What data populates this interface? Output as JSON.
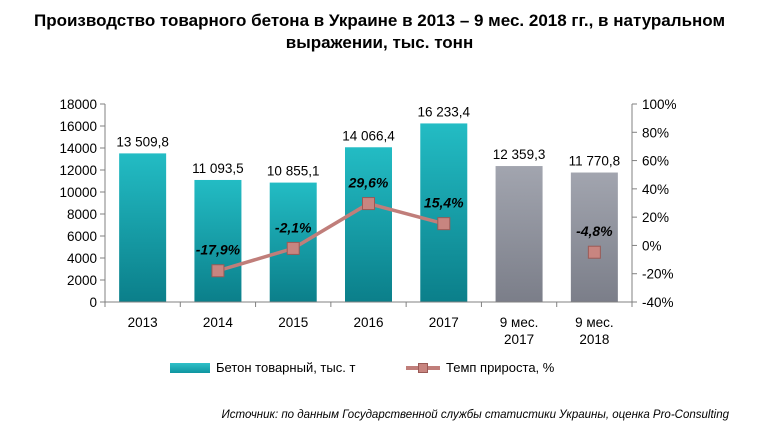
{
  "chart_data": {
    "type": "bar",
    "title": "Производство товарного бетона в Украине в 2013 – 9 мес. 2018 гг., в натуральном выражении, тыс. тонн",
    "categories": [
      "2013",
      "2014",
      "2015",
      "2016",
      "2017",
      "9 мес.\n2017",
      "9 мес.\n2018"
    ],
    "series": [
      {
        "name": "Бетон товарный, тыс. т",
        "values": [
          13509.8,
          11093.5,
          10855.1,
          14066.4,
          16233.4,
          12359.3,
          11770.8
        ],
        "labels": [
          "13 509,8",
          "11 093,5",
          "10 855,1",
          "14 066,4",
          "16 233,4",
          "12 359,3",
          "11 770,8"
        ],
        "colors": [
          "#14a7b0",
          "#14a7b0",
          "#14a7b0",
          "#14a7b0",
          "#14a7b0",
          "#8e919c",
          "#8e919c"
        ]
      },
      {
        "name": "Темп прироста, %",
        "axis": "right",
        "values": [
          null,
          -17.9,
          -2.1,
          29.6,
          15.4,
          null,
          -4.8
        ],
        "labels": [
          "",
          "-17,9%",
          "-2,1%",
          "29,6%",
          "15,4%",
          "",
          "-4,8%"
        ],
        "color": "#c07e7a"
      }
    ],
    "y_left": {
      "ylim": [
        0,
        18000
      ],
      "ticks": [
        "0",
        "2000",
        "4000",
        "6000",
        "8000",
        "10000",
        "12000",
        "14000",
        "16000",
        "18000"
      ]
    },
    "y_right": {
      "ylim": [
        -40,
        100
      ],
      "ticks": [
        "-40%",
        "-20%",
        "0%",
        "20%",
        "40%",
        "60%",
        "80%",
        "100%"
      ]
    },
    "grid": false,
    "legend": "bottom"
  },
  "source": "Источник: по данным Государственной службы статистики Украины, оценка Pro-Consulting"
}
